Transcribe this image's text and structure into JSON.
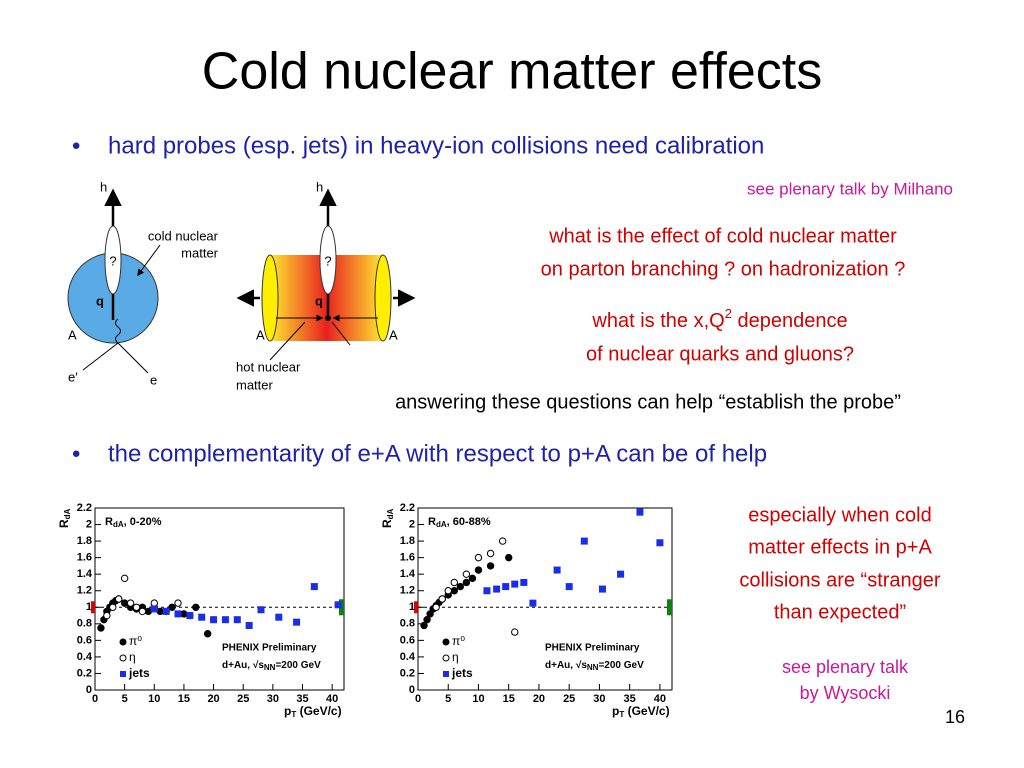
{
  "title": "Cold nuclear matter effects",
  "bullets": [
    "hard probes (esp. jets) in heavy-ion collisions need calibration",
    "the complementarity of e+A with respect to p+A can be of help"
  ],
  "notes": {
    "milhano": "see plenary talk by Milhano",
    "question1": [
      "what is the effect of cold nuclear matter",
      "on parton branching ? on hadronization ?"
    ],
    "question2": {
      "line1_main": "what is the x,Q",
      "line1_sup": "2",
      "line1_rest": " dependence",
      "line2": "of nuclear quarks and gluons?"
    },
    "answer": "answering these questions can help “establish the probe”",
    "stranger": [
      "especially when cold",
      "matter effects in p+A",
      "collisions are “stranger",
      "than expected”"
    ],
    "wysocki": [
      "see plenary talk",
      "by Wysocki"
    ],
    "page": "16"
  },
  "diagram_left": {
    "h": "h",
    "question": "?",
    "q": "q",
    "matter_label": [
      "cold nuclear",
      "matter"
    ],
    "A": "A",
    "e_prime": "e′",
    "e": "e"
  },
  "diagram_right": {
    "h": "h",
    "question": "?",
    "q": "q",
    "A_left": "A",
    "A_right": "A",
    "matter_label": [
      "hot nuclear",
      "matter"
    ]
  },
  "chart_data": [
    {
      "type": "scatter",
      "label_main": "R",
      "label_sub": "dA",
      "label_rest": ", 0-20%",
      "ylabel_main": "R",
      "ylabel_sub": "dA",
      "xlabel_main": "p",
      "xlabel_sub": "T",
      "xlabel_rest": " (GeV/c)",
      "note": "PHENIX Preliminary",
      "system_main": "d+Au, √s",
      "system_sub": "NN",
      "system_rest": "=200 GeV",
      "xlim": [
        0,
        42
      ],
      "ylim": [
        0,
        2.2
      ],
      "xticks": [
        0,
        5,
        10,
        15,
        20,
        25,
        30,
        35,
        40
      ],
      "yticks": [
        0,
        0.2,
        0.4,
        0.6,
        0.8,
        1,
        1.2,
        1.4,
        1.6,
        1.8,
        2,
        2.2
      ],
      "reference_line": 1,
      "series": [
        {
          "name": "π⁰",
          "color": "#000000",
          "marker": "filled-circle",
          "x": [
            1,
            1.5,
            2,
            2.5,
            3,
            3.5,
            4,
            5,
            6,
            7,
            8,
            9,
            10,
            11,
            13,
            15,
            17,
            19
          ],
          "values": [
            0.75,
            0.85,
            0.95,
            1.0,
            1.05,
            1.08,
            1.1,
            1.05,
            1.0,
            0.98,
            1.0,
            0.95,
            1.0,
            0.95,
            1.0,
            0.92,
            1.0,
            0.68
          ]
        },
        {
          "name": "η",
          "color": "#000000",
          "marker": "open-circle",
          "x": [
            2,
            3,
            4,
            5,
            6,
            7,
            8,
            10,
            12,
            14,
            16
          ],
          "values": [
            0.9,
            1.0,
            1.1,
            1.35,
            1.05,
            1.0,
            0.95,
            1.05,
            0.95,
            1.05,
            0.9
          ]
        },
        {
          "name": "jets",
          "color": "#1a2ee8",
          "marker": "square",
          "x": [
            10,
            12,
            14,
            16,
            18,
            20,
            22,
            24,
            26,
            28,
            31,
            34,
            37,
            41
          ],
          "values": [
            0.98,
            0.95,
            0.92,
            0.9,
            0.88,
            0.85,
            0.85,
            0.85,
            0.78,
            0.97,
            0.88,
            0.82,
            1.25,
            1.03
          ]
        }
      ]
    },
    {
      "type": "scatter",
      "label_main": "R",
      "label_sub": "dA",
      "label_rest": ", 60-88%",
      "ylabel_main": "R",
      "ylabel_sub": "dA",
      "xlabel_main": "p",
      "xlabel_sub": "T",
      "xlabel_rest": " (GeV/c)",
      "note": "PHENIX Preliminary",
      "system_main": "d+Au, √s",
      "system_sub": "NN",
      "system_rest": "=200 GeV",
      "xlim": [
        0,
        42
      ],
      "ylim": [
        0,
        2.2
      ],
      "xticks": [
        0,
        5,
        10,
        15,
        20,
        25,
        30,
        35,
        40
      ],
      "yticks": [
        0,
        0.2,
        0.4,
        0.6,
        0.8,
        1,
        1.2,
        1.4,
        1.6,
        1.8,
        2,
        2.2
      ],
      "reference_line": 1,
      "series": [
        {
          "name": "π⁰",
          "color": "#000000",
          "marker": "filled-circle",
          "x": [
            1,
            1.5,
            2,
            2.5,
            3,
            3.5,
            4,
            5,
            6,
            7,
            8,
            9,
            10,
            12,
            15
          ],
          "values": [
            0.78,
            0.85,
            0.92,
            0.98,
            1.02,
            1.06,
            1.1,
            1.15,
            1.2,
            1.25,
            1.3,
            1.35,
            1.45,
            1.5,
            1.6
          ]
        },
        {
          "name": "η",
          "color": "#000000",
          "marker": "open-circle",
          "x": [
            3,
            4,
            5,
            6,
            8,
            10,
            12,
            14,
            16
          ],
          "values": [
            1.0,
            1.1,
            1.2,
            1.3,
            1.4,
            1.6,
            1.65,
            1.8,
            0.7
          ]
        },
        {
          "name": "jets",
          "color": "#1a2ee8",
          "marker": "square",
          "x": [
            11.4,
            13,
            14.5,
            16,
            17.5,
            19,
            23,
            25,
            27.5,
            30.5,
            33.5,
            36.7,
            40
          ],
          "values": [
            1.2,
            1.22,
            1.25,
            1.28,
            1.3,
            1.05,
            1.45,
            1.25,
            1.8,
            1.22,
            1.4,
            2.15,
            1.78
          ]
        }
      ]
    }
  ]
}
